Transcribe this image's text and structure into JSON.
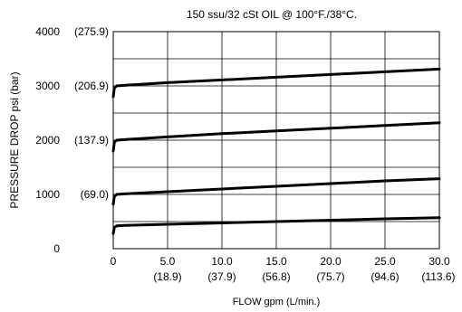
{
  "chart_data": {
    "type": "line",
    "title": "150 ssu/32 cSt OIL @ 100°F./38°C.",
    "xlabel": "FLOW gpm (L/min.)",
    "ylabel": "PRESSURE DROP psi (bar)",
    "xlim": [
      0,
      30
    ],
    "ylim": [
      0,
      4000
    ],
    "grid": true,
    "legend": "none",
    "x_ticks": [
      {
        "value": 0,
        "label": "0",
        "sublabel": ""
      },
      {
        "value": 5,
        "label": "5.0",
        "sublabel": "(18.9)"
      },
      {
        "value": 10,
        "label": "10.0",
        "sublabel": "(37.9)"
      },
      {
        "value": 15,
        "label": "15.0",
        "sublabel": "(56.8)"
      },
      {
        "value": 20,
        "label": "20.0",
        "sublabel": "(75.7)"
      },
      {
        "value": 25,
        "label": "25.0",
        "sublabel": "(94.6)"
      },
      {
        "value": 30,
        "label": "30.0",
        "sublabel": "(113.6)"
      }
    ],
    "y_ticks": [
      {
        "value": 0,
        "label": "0",
        "sublabel": ""
      },
      {
        "value": 1000,
        "label": "1000",
        "sublabel": "(69.0)"
      },
      {
        "value": 2000,
        "label": "2000",
        "sublabel": "(137.9)"
      },
      {
        "value": 3000,
        "label": "3000",
        "sublabel": "(206.9)"
      },
      {
        "value": 4000,
        "label": "4000",
        "sublabel": "(275.9)"
      }
    ],
    "h_gridlines": [
      500,
      1000,
      1500,
      2000,
      2500,
      3000,
      3500,
      4000
    ],
    "series": [
      {
        "x": [
          0,
          0.1,
          0.3,
          1,
          5,
          10,
          15,
          20,
          25,
          30
        ],
        "y": [
          280,
          390,
          420,
          430,
          450,
          475,
          500,
          525,
          550,
          570
        ]
      },
      {
        "x": [
          0,
          0.1,
          0.3,
          1,
          5,
          10,
          15,
          20,
          25,
          30
        ],
        "y": [
          820,
          960,
          1000,
          1010,
          1050,
          1100,
          1150,
          1200,
          1250,
          1290
        ]
      },
      {
        "x": [
          0,
          0.1,
          0.3,
          1,
          5,
          10,
          15,
          20,
          25,
          30
        ],
        "y": [
          1800,
          1960,
          2000,
          2010,
          2060,
          2120,
          2170,
          2220,
          2270,
          2320
        ]
      },
      {
        "x": [
          0,
          0.1,
          0.3,
          1,
          5,
          10,
          15,
          20,
          25,
          30
        ],
        "y": [
          2800,
          2960,
          3000,
          3010,
          3060,
          3110,
          3160,
          3210,
          3260,
          3310
        ]
      }
    ],
    "colors": {
      "line": "#000000",
      "grid": "#000000",
      "background": "#ffffff"
    }
  }
}
